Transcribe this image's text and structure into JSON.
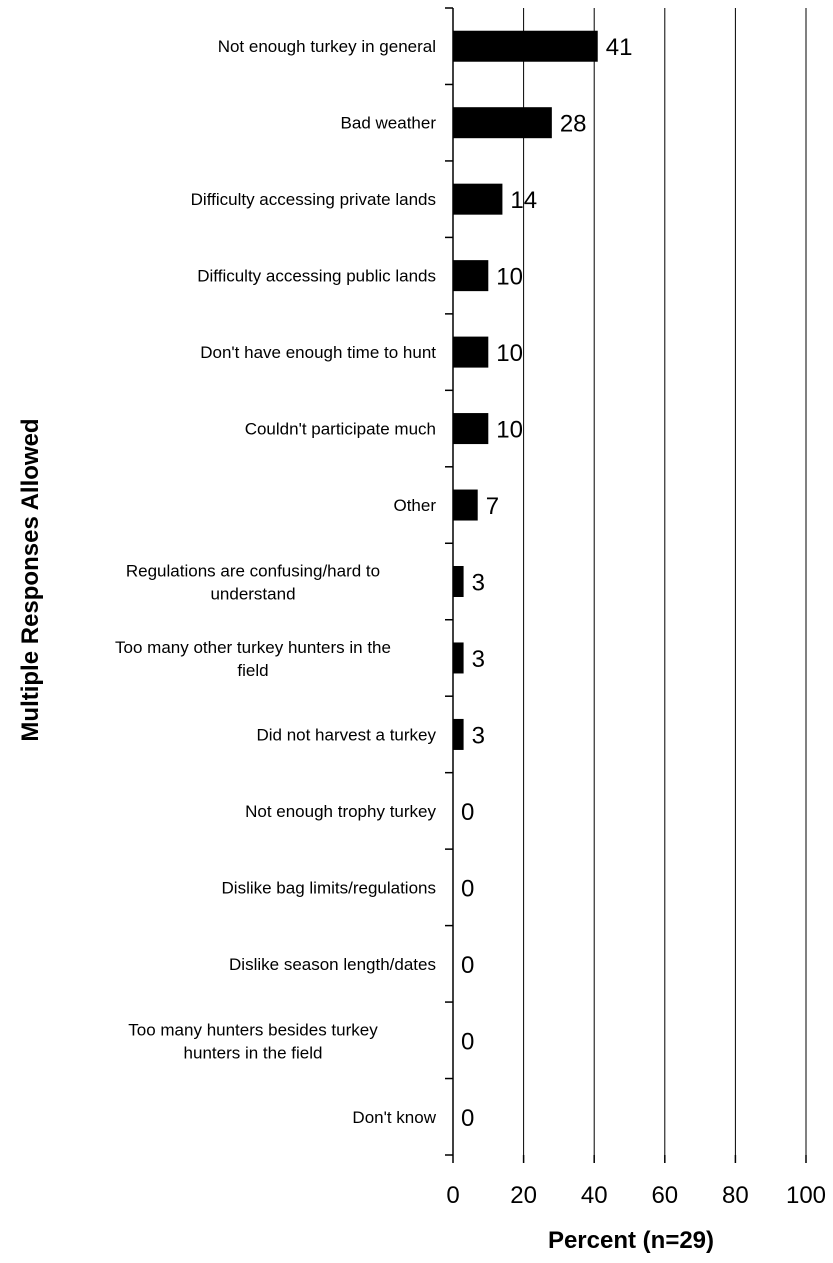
{
  "chart_data": {
    "type": "bar",
    "orientation": "horizontal",
    "categories": [
      [
        "Not enough turkey in general"
      ],
      [
        "Bad weather"
      ],
      [
        "Difficulty accessing private lands"
      ],
      [
        "Difficulty accessing public lands"
      ],
      [
        "Don't have enough time to hunt"
      ],
      [
        "Couldn't participate much"
      ],
      [
        "Other"
      ],
      [
        "Regulations are confusing/hard to",
        "understand"
      ],
      [
        "Too many other turkey hunters in the",
        "field"
      ],
      [
        "Did not harvest a turkey"
      ],
      [
        "Not enough trophy turkey"
      ],
      [
        "Dislike bag limits/regulations"
      ],
      [
        "Dislike season length/dates"
      ],
      [
        "Too many hunters besides turkey",
        "hunters in the field"
      ],
      [
        "Don't know"
      ]
    ],
    "values": [
      41,
      28,
      14,
      10,
      10,
      10,
      7,
      3,
      3,
      3,
      0,
      0,
      0,
      0,
      0
    ],
    "value_labels": [
      "41",
      "28",
      "14",
      "10",
      "10",
      "10",
      "7",
      "3",
      "3",
      "3",
      "0",
      "0",
      "0",
      "0",
      "0"
    ],
    "xlim": [
      0,
      100
    ],
    "xticks": [
      0,
      20,
      40,
      60,
      80,
      100
    ],
    "xlabel": "Percent (n=29)",
    "ylabel": "Multiple Responses Allowed",
    "grid": true,
    "bar_color": "#000000"
  }
}
